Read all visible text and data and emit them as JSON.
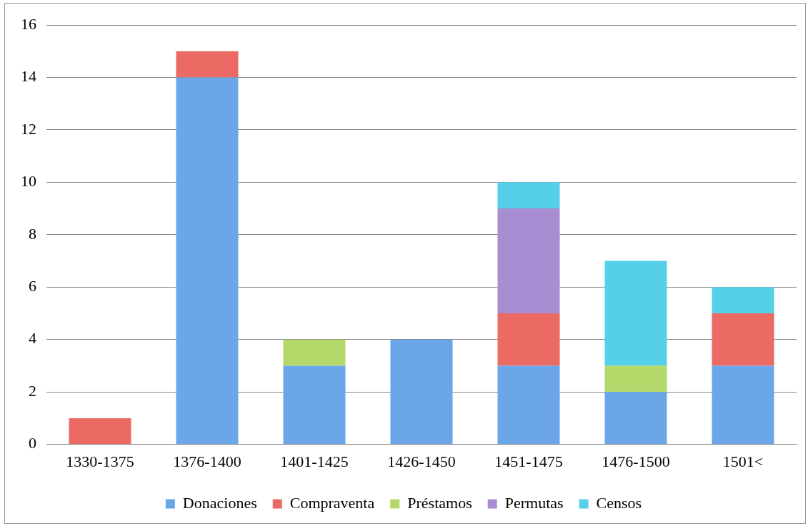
{
  "chart_data": {
    "type": "bar",
    "stacked": true,
    "categories": [
      "1330-1375",
      "1376-1400",
      "1401-1425",
      "1426-1450",
      "1451-1475",
      "1476-1500",
      "1501<"
    ],
    "series": [
      {
        "name": "Donaciones",
        "color": "#6aa6e8",
        "values": [
          0,
          14,
          3,
          4,
          3,
          2,
          3
        ]
      },
      {
        "name": "Compraventa",
        "color": "#eb6a64",
        "values": [
          1,
          1,
          0,
          0,
          2,
          0,
          2
        ]
      },
      {
        "name": "Préstamos",
        "color": "#b4d86a",
        "values": [
          0,
          0,
          1,
          0,
          0,
          1,
          0
        ]
      },
      {
        "name": "Permutas",
        "color": "#a78dd2",
        "values": [
          0,
          0,
          0,
          0,
          4,
          0,
          0
        ]
      },
      {
        "name": "Censos",
        "color": "#55d0e8",
        "values": [
          0,
          0,
          0,
          0,
          1,
          4,
          1
        ]
      }
    ],
    "ylim": [
      0,
      16
    ],
    "yticks": [
      0,
      2,
      4,
      6,
      8,
      10,
      12,
      14,
      16
    ],
    "grid": "y",
    "legend": "bottom"
  }
}
